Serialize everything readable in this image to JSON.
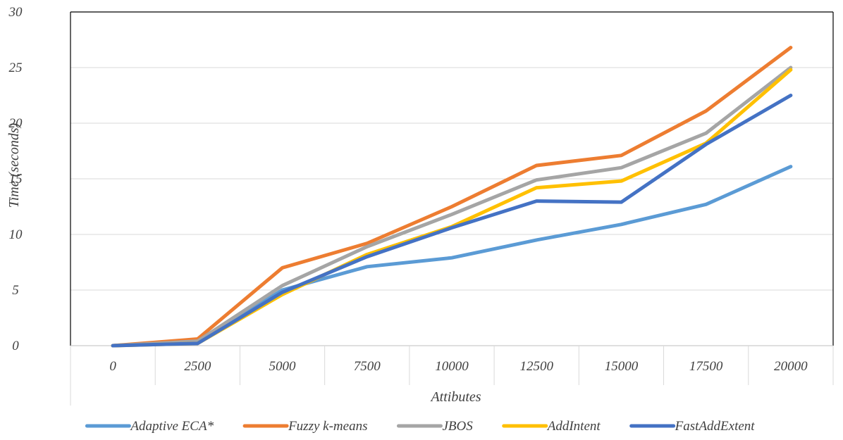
{
  "chart_data": {
    "type": "line",
    "title": "",
    "xlabel": "Attibutes",
    "ylabel": "Time (seconds)",
    "categories": [
      "0",
      "2500",
      "5000",
      "7500",
      "10000",
      "12500",
      "15000",
      "17500",
      "20000"
    ],
    "yticks": [
      "0",
      "5",
      "10",
      "15",
      "20",
      "25",
      "30"
    ],
    "ylim": [
      0,
      30
    ],
    "grid": true,
    "legend": "bottom",
    "series": [
      {
        "name": "Adaptive ECA*",
        "color": "#5b9bd5",
        "values": [
          0,
          0.3,
          5.0,
          7.1,
          7.9,
          9.5,
          10.9,
          12.7,
          16.1
        ]
      },
      {
        "name": "Fuzzy k-means",
        "color": "#ed7d31",
        "values": [
          0,
          0.6,
          7.0,
          9.2,
          12.5,
          16.2,
          17.1,
          21.1,
          26.8
        ]
      },
      {
        "name": "JBOS",
        "color": "#a5a5a5",
        "values": [
          0,
          0.4,
          5.4,
          8.9,
          11.8,
          14.9,
          16.0,
          19.1,
          25.0
        ]
      },
      {
        "name": "AddIntent",
        "color": "#ffc000",
        "values": [
          0,
          0.2,
          4.6,
          8.2,
          10.7,
          14.2,
          14.8,
          18.2,
          24.8
        ]
      },
      {
        "name": "FastAddExtent",
        "color": "#4472c4",
        "values": [
          0,
          0.2,
          4.8,
          8.0,
          10.6,
          13.0,
          12.9,
          18.1,
          22.5
        ]
      }
    ]
  }
}
